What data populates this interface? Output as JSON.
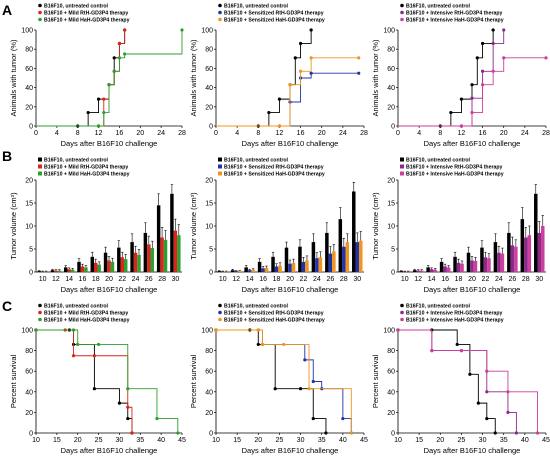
{
  "panel_letters": [
    "A",
    "B",
    "C"
  ],
  "colors": {
    "control": "#000000",
    "mild_rth": "#d7261e",
    "mild_hah": "#2e9e2e",
    "sens_rth": "#2233a8",
    "sens_hah": "#f0961e",
    "int_rth": "#8a2a8a",
    "int_hah": "#cc3f9b"
  },
  "chart_data": [
    {
      "id": "A1",
      "type": "line",
      "step": true,
      "xlabel": "Days after B16F10 challenge",
      "ylabel": "Animals with tumor (%)",
      "xlim": [
        0,
        28
      ],
      "ylim": [
        0,
        100
      ],
      "xticks": [
        0,
        4,
        8,
        12,
        16,
        20,
        24,
        28
      ],
      "yticks": [
        0,
        20,
        40,
        60,
        80,
        100
      ],
      "legend": "top-left",
      "series": [
        {
          "name": "B16F10, untreated control",
          "color_key": "control",
          "x": [
            8,
            10,
            12,
            14,
            15,
            16,
            17
          ],
          "y": [
            0,
            14,
            28,
            43,
            71,
            86,
            100
          ]
        },
        {
          "name": "B16F10 + Mild RtH-GD3P4 therapy",
          "color_key": "mild_rth",
          "x": [
            12,
            13,
            14,
            15,
            16,
            17
          ],
          "y": [
            0,
            28,
            43,
            57,
            86,
            100
          ]
        },
        {
          "name": "B16F10 + Mild HaH-GD3P4 therapy",
          "color_key": "mild_hah",
          "x": [
            12,
            13,
            14,
            15,
            16,
            17,
            28
          ],
          "y": [
            0,
            14,
            43,
            57,
            71,
            75,
            100
          ]
        }
      ]
    },
    {
      "id": "A2",
      "type": "line",
      "step": true,
      "xlabel": "Days after B16F10 challenge",
      "ylabel": "Animals with tumor (%)",
      "xlim": [
        0,
        28
      ],
      "ylim": [
        0,
        100
      ],
      "xticks": [
        0,
        4,
        8,
        12,
        16,
        20,
        24,
        28
      ],
      "yticks": [
        0,
        20,
        40,
        60,
        80,
        100
      ],
      "legend": "top-left",
      "series": [
        {
          "name": "B16F10, untreated control",
          "color_key": "control",
          "x": [
            8,
            10,
            12,
            14,
            15,
            16,
            18
          ],
          "y": [
            0,
            14,
            28,
            43,
            71,
            86,
            100
          ]
        },
        {
          "name": "B16F10 + Sensitized RtH-GD3P4 therapy",
          "color_key": "sens_rth",
          "x": [
            12,
            14,
            16,
            18,
            27
          ],
          "y": [
            0,
            25,
            50,
            55,
            55
          ]
        },
        {
          "name": "B16F10 + Sensitized HaH-GD3P4 therapy",
          "color_key": "sens_hah",
          "x": [
            12,
            14,
            16,
            18,
            27
          ],
          "y": [
            0,
            43,
            57,
            71,
            71
          ]
        }
      ]
    },
    {
      "id": "A3",
      "type": "line",
      "step": true,
      "xlabel": "Days after B16F10 challenge",
      "ylabel": "Animals with tumor (%)",
      "xlim": [
        0,
        28
      ],
      "ylim": [
        0,
        100
      ],
      "xticks": [
        0,
        4,
        8,
        12,
        16,
        20,
        24,
        28
      ],
      "yticks": [
        0,
        20,
        40,
        60,
        80,
        100
      ],
      "legend": "top-left",
      "series": [
        {
          "name": "B16F10, untreated control",
          "color_key": "control",
          "x": [
            8,
            10,
            12,
            14,
            15,
            16,
            18
          ],
          "y": [
            0,
            14,
            28,
            43,
            71,
            86,
            100
          ]
        },
        {
          "name": "B16F10 + Intensive RtH-GD3P4 therapy",
          "color_key": "int_rth",
          "x": [
            12,
            14,
            16,
            18,
            20
          ],
          "y": [
            0,
            29,
            57,
            86,
            100
          ]
        },
        {
          "name": "B16F10 + Intensive HaH-GD3P4 therapy",
          "color_key": "int_hah",
          "x": [
            12,
            14,
            16,
            18,
            20,
            28
          ],
          "y": [
            0,
            14,
            43,
            57,
            71,
            71
          ]
        }
      ]
    },
    {
      "id": "B1",
      "type": "bar",
      "errorbars": true,
      "xlabel": "Days after B16F10 challenge",
      "ylabel": "Tumor volume (cm³)",
      "categories": [
        "10",
        "12",
        "14",
        "16",
        "18",
        "20",
        "22",
        "24",
        "26",
        "28",
        "30"
      ],
      "ylim": [
        0,
        20
      ],
      "yticks": [
        0,
        5,
        10,
        15,
        20
      ],
      "legend": "top-left",
      "series": [
        {
          "name": "B16F10, untreated control",
          "color_key": "control",
          "values": [
            0.2,
            0.4,
            1.0,
            2.2,
            3.3,
            4.2,
            5.3,
            6.5,
            8.5,
            14.5,
            17.0
          ],
          "errors": [
            0.1,
            0.2,
            0.4,
            0.7,
            1.0,
            1.2,
            1.5,
            1.8,
            2.2,
            2.5,
            2.0
          ]
        },
        {
          "name": "B16F10 + Mild RtH-GD3P4 therapy",
          "color_key": "mild_rth",
          "values": [
            0.1,
            0.3,
            0.6,
            1.2,
            2.0,
            2.5,
            3.2,
            4.2,
            6.0,
            7.5,
            9.0
          ],
          "errors": [
            0.1,
            0.2,
            0.3,
            0.5,
            0.8,
            0.9,
            1.1,
            1.4,
            1.8,
            2.2,
            2.5
          ]
        },
        {
          "name": "B16F10 + Mild HaH-GD3P4 therapy",
          "color_key": "mild_hah",
          "values": [
            0.1,
            0.3,
            0.5,
            1.0,
            1.6,
            2.2,
            2.8,
            3.7,
            5.2,
            7.0,
            8.0
          ],
          "errors": [
            0.1,
            0.2,
            0.3,
            0.4,
            0.6,
            0.8,
            1.0,
            1.2,
            1.5,
            2.0,
            2.3
          ]
        }
      ]
    },
    {
      "id": "B2",
      "type": "bar",
      "errorbars": true,
      "xlabel": "Days after B16F10 challenge",
      "ylabel": "Tumor volume (cm³)",
      "categories": [
        "10",
        "12",
        "14",
        "16",
        "18",
        "20",
        "22",
        "24",
        "26",
        "28",
        "30"
      ],
      "ylim": [
        0,
        20
      ],
      "yticks": [
        0,
        5,
        10,
        15,
        20
      ],
      "legend": "top-left",
      "series": [
        {
          "name": "B16F10, untreated control",
          "color_key": "control",
          "values": [
            0.2,
            0.4,
            1.0,
            2.2,
            3.3,
            5.3,
            5.5,
            6.5,
            8.5,
            11.5,
            17.5
          ],
          "errors": [
            0.1,
            0.2,
            0.4,
            0.7,
            1.0,
            1.2,
            1.5,
            1.8,
            2.2,
            2.5,
            2.0
          ]
        },
        {
          "name": "B16F10 + Sensitized RtH-GD3P4 therapy",
          "color_key": "sens_rth",
          "values": [
            0.1,
            0.2,
            0.4,
            0.8,
            1.2,
            1.8,
            2.2,
            3.0,
            4.0,
            5.5,
            6.5
          ],
          "errors": [
            0.1,
            0.1,
            0.2,
            0.4,
            0.6,
            0.8,
            1.0,
            1.2,
            1.5,
            1.8,
            2.0
          ]
        },
        {
          "name": "B16F10 + Sensitized HaH-GD3P4 therapy",
          "color_key": "sens_hah",
          "values": [
            0.1,
            0.2,
            0.5,
            0.9,
            1.4,
            2.0,
            2.5,
            3.2,
            4.5,
            6.5,
            6.8
          ],
          "errors": [
            0.1,
            0.1,
            0.2,
            0.4,
            0.6,
            0.8,
            1.0,
            1.2,
            1.5,
            1.8,
            2.0
          ]
        }
      ]
    },
    {
      "id": "B3",
      "type": "bar",
      "errorbars": true,
      "xlabel": "Days after B16F10 challenge",
      "ylabel": "Tumor volume (cm³)",
      "categories": [
        "10",
        "12",
        "14",
        "16",
        "18",
        "20",
        "22",
        "24",
        "26",
        "28",
        "30"
      ],
      "ylim": [
        0,
        20
      ],
      "yticks": [
        0,
        5,
        10,
        15,
        20
      ],
      "legend": "top-left",
      "series": [
        {
          "name": "B16F10, untreated control",
          "color_key": "control",
          "values": [
            0.2,
            0.4,
            1.0,
            2.2,
            3.3,
            4.2,
            5.3,
            6.5,
            8.5,
            11.5,
            17.0
          ],
          "errors": [
            0.1,
            0.2,
            0.4,
            0.7,
            1.0,
            1.2,
            1.5,
            1.8,
            2.2,
            2.5,
            2.0
          ]
        },
        {
          "name": "B16F10 + Intensive RtH-GD3P4 therapy",
          "color_key": "int_rth",
          "values": [
            0.1,
            0.3,
            0.6,
            1.2,
            2.0,
            2.5,
            3.2,
            4.2,
            5.8,
            7.5,
            8.5
          ],
          "errors": [
            0.1,
            0.2,
            0.3,
            0.5,
            0.8,
            0.9,
            1.1,
            1.4,
            1.8,
            2.2,
            2.5
          ]
        },
        {
          "name": "B16F10 + Intensive HaH-GD3P4 therapy",
          "color_key": "int_hah",
          "values": [
            0.1,
            0.3,
            0.5,
            1.0,
            1.8,
            2.4,
            3.0,
            4.0,
            5.5,
            8.0,
            10.0
          ],
          "errors": [
            0.1,
            0.2,
            0.3,
            0.4,
            0.6,
            0.8,
            1.0,
            1.2,
            1.5,
            2.0,
            2.3
          ]
        }
      ]
    },
    {
      "id": "C1",
      "type": "line",
      "step": true,
      "xlabel": "Days after B16F10 challenge",
      "ylabel": "Percent survival",
      "xlim": [
        10,
        45
      ],
      "ylim": [
        0,
        100
      ],
      "xticks": [
        10,
        15,
        20,
        25,
        30,
        35,
        40,
        45
      ],
      "yticks": [
        0,
        20,
        40,
        60,
        80,
        100
      ],
      "legend": "top-left",
      "series": [
        {
          "name": "B16F10, untreated control",
          "color_key": "control",
          "x": [
            10,
            18,
            19,
            24,
            30,
            32,
            33
          ],
          "y": [
            100,
            100,
            86,
            43,
            29,
            14,
            0
          ]
        },
        {
          "name": "B16F10 + Mild RtH-GD3P4 therapy",
          "color_key": "mild_rth",
          "x": [
            10,
            17,
            19,
            24,
            32,
            33
          ],
          "y": [
            100,
            100,
            75,
            75,
            25,
            0
          ]
        },
        {
          "name": "B16F10 + Mild HaH-GD3P4 therapy",
          "color_key": "mild_hah",
          "x": [
            10,
            19,
            20,
            25,
            32,
            39,
            44
          ],
          "y": [
            100,
            100,
            86,
            86,
            43,
            14,
            0
          ]
        }
      ]
    },
    {
      "id": "C2",
      "type": "line",
      "step": true,
      "xlabel": "Days after B16F10 challenge",
      "ylabel": "Percent survival",
      "xlim": [
        10,
        45
      ],
      "ylim": [
        0,
        100
      ],
      "xticks": [
        10,
        15,
        20,
        25,
        30,
        35,
        40,
        45
      ],
      "yticks": [
        0,
        20,
        40,
        60,
        80,
        100
      ],
      "legend": "top-left",
      "series": [
        {
          "name": "B16F10, untreated control",
          "color_key": "control",
          "x": [
            10,
            18,
            20,
            24,
            30,
            33,
            36
          ],
          "y": [
            100,
            100,
            86,
            43,
            43,
            14,
            0
          ]
        },
        {
          "name": "B16F10 + Sensitized RtH-GD3P4 therapy",
          "color_key": "sens_rth",
          "x": [
            10,
            20,
            21,
            31,
            33,
            35,
            40,
            42
          ],
          "y": [
            100,
            100,
            86,
            71,
            50,
            43,
            14,
            0
          ]
        },
        {
          "name": "B16F10 + Sensitized HaH-GD3P4 therapy",
          "color_key": "sens_hah",
          "x": [
            10,
            20,
            21,
            26,
            32,
            42
          ],
          "y": [
            100,
            100,
            86,
            86,
            43,
            0
          ]
        }
      ]
    },
    {
      "id": "C3",
      "type": "line",
      "step": true,
      "xlabel": "Days after B16F10 challenge",
      "ylabel": "Percent survival",
      "xlim": [
        10,
        45
      ],
      "ylim": [
        0,
        100
      ],
      "xticks": [
        10,
        15,
        20,
        25,
        30,
        35,
        40,
        45
      ],
      "yticks": [
        0,
        20,
        40,
        60,
        80,
        100
      ],
      "legend": "top-left",
      "series": [
        {
          "name": "B16F10, untreated control",
          "color_key": "control",
          "x": [
            10,
            18,
            24,
            27,
            29,
            31,
            33
          ],
          "y": [
            100,
            100,
            86,
            57,
            29,
            14,
            0
          ]
        },
        {
          "name": "B16F10 + Intensive RtH-GD3P4 therapy",
          "color_key": "int_rth",
          "x": [
            10,
            18,
            25,
            31,
            36,
            38
          ],
          "y": [
            100,
            80,
            80,
            40,
            20,
            0
          ]
        },
        {
          "name": "B16F10 + Intensive HaH-GD3P4 therapy",
          "color_key": "int_hah",
          "x": [
            10,
            18,
            25,
            31,
            36,
            43
          ],
          "y": [
            100,
            80,
            80,
            60,
            40,
            0
          ]
        }
      ]
    }
  ]
}
